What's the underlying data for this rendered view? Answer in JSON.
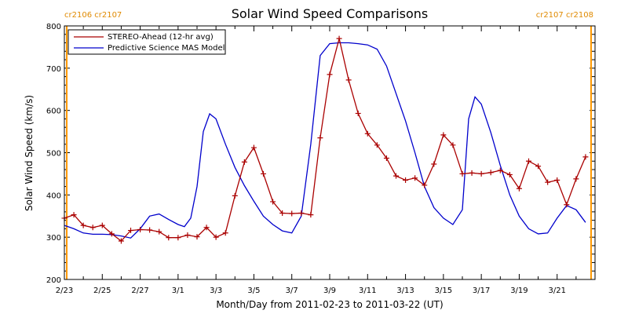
{
  "chart_data": {
    "type": "line",
    "title": "Solar Wind Speed Comparisons",
    "xlabel": "Month/Day from 2011-02-23 to 2011-03-22 (UT)",
    "ylabel": "Solar Wind Speed (km/s)",
    "xlim": [
      "2011-02-23",
      "2011-03-23"
    ],
    "ylim": [
      200,
      800
    ],
    "x_tick_labels": [
      "2/23",
      "2/25",
      "2/27",
      "3/1",
      "3/3",
      "3/5",
      "3/7",
      "3/9",
      "3/11",
      "3/13",
      "3/15",
      "3/17",
      "3/19",
      "3/21"
    ],
    "y_tick_labels": [
      "200",
      "300",
      "400",
      "500",
      "600",
      "700",
      "800"
    ],
    "y_ticks": [
      200,
      300,
      400,
      500,
      600,
      700,
      800
    ],
    "legend_placement": "top-left",
    "carrington_left": "cr2106 cr2107",
    "carrington_right": "cr2107 cr2108",
    "carrington_boundaries": [
      "2011-02-23T03:00",
      "2011-03-22T19:00"
    ],
    "colors": {
      "stereo": "#aa0000",
      "model": "#0000cc",
      "boundary": "#ff9900",
      "carrington_text": "#e08a00"
    },
    "series": [
      {
        "name": "STEREO-Ahead (12-hr avg)",
        "marker": "plus",
        "x": [
          "2011-02-23T00:00",
          "2011-02-23T12:00",
          "2011-02-24T00:00",
          "2011-02-24T12:00",
          "2011-02-25T00:00",
          "2011-02-25T12:00",
          "2011-02-26T00:00",
          "2011-02-26T12:00",
          "2011-02-27T00:00",
          "2011-02-27T12:00",
          "2011-02-28T00:00",
          "2011-02-28T12:00",
          "2011-03-01T00:00",
          "2011-03-01T12:00",
          "2011-03-02T00:00",
          "2011-03-02T12:00",
          "2011-03-03T00:00",
          "2011-03-03T12:00",
          "2011-03-04T00:00",
          "2011-03-04T12:00",
          "2011-03-05T00:00",
          "2011-03-05T12:00",
          "2011-03-06T00:00",
          "2011-03-06T12:00",
          "2011-03-07T00:00",
          "2011-03-07T12:00",
          "2011-03-08T00:00",
          "2011-03-08T12:00",
          "2011-03-09T00:00",
          "2011-03-09T12:00",
          "2011-03-10T00:00",
          "2011-03-10T12:00",
          "2011-03-11T00:00",
          "2011-03-11T12:00",
          "2011-03-12T00:00",
          "2011-03-12T12:00",
          "2011-03-13T00:00",
          "2011-03-13T12:00",
          "2011-03-14T00:00",
          "2011-03-14T12:00",
          "2011-03-15T00:00",
          "2011-03-15T12:00",
          "2011-03-16T00:00",
          "2011-03-16T12:00",
          "2011-03-17T00:00",
          "2011-03-17T12:00",
          "2011-03-18T00:00",
          "2011-03-18T12:00",
          "2011-03-19T00:00",
          "2011-03-19T12:00",
          "2011-03-20T00:00",
          "2011-03-20T12:00",
          "2011-03-21T00:00",
          "2011-03-21T12:00",
          "2011-03-22T00:00",
          "2011-03-22T12:00"
        ],
        "values": [
          345,
          353,
          328,
          323,
          328,
          308,
          291,
          316,
          318,
          317,
          313,
          299,
          299,
          305,
          301,
          323,
          300,
          310,
          398,
          478,
          512,
          450,
          384,
          357,
          356,
          357,
          353,
          535,
          685,
          770,
          672,
          593,
          545,
          518,
          487,
          445,
          435,
          440,
          423,
          473,
          542,
          518,
          450,
          452,
          450,
          453,
          458,
          448,
          415,
          480,
          468,
          430,
          435,
          377,
          438,
          490
        ]
      },
      {
        "name": "Predictive Science MAS Model",
        "marker": "none",
        "x": [
          "2011-02-23T00:00",
          "2011-02-23T12:00",
          "2011-02-24T00:00",
          "2011-02-24T12:00",
          "2011-02-25T00:00",
          "2011-02-25T12:00",
          "2011-02-26T00:00",
          "2011-02-26T12:00",
          "2011-02-27T00:00",
          "2011-02-27T12:00",
          "2011-02-28T00:00",
          "2011-02-28T12:00",
          "2011-03-01T00:00",
          "2011-03-01T08:00",
          "2011-03-01T16:00",
          "2011-03-02T00:00",
          "2011-03-02T08:00",
          "2011-03-02T16:00",
          "2011-03-03T00:00",
          "2011-03-03T12:00",
          "2011-03-04T00:00",
          "2011-03-04T12:00",
          "2011-03-05T00:00",
          "2011-03-05T12:00",
          "2011-03-06T00:00",
          "2011-03-06T12:00",
          "2011-03-07T00:00",
          "2011-03-07T12:00",
          "2011-03-08T00:00",
          "2011-03-08T12:00",
          "2011-03-09T00:00",
          "2011-03-09T12:00",
          "2011-03-10T00:00",
          "2011-03-10T12:00",
          "2011-03-11T00:00",
          "2011-03-11T12:00",
          "2011-03-12T00:00",
          "2011-03-12T12:00",
          "2011-03-13T00:00",
          "2011-03-13T12:00",
          "2011-03-14T00:00",
          "2011-03-14T12:00",
          "2011-03-15T00:00",
          "2011-03-15T12:00",
          "2011-03-16T00:00",
          "2011-03-16T08:00",
          "2011-03-16T16:00",
          "2011-03-17T00:00",
          "2011-03-17T12:00",
          "2011-03-18T00:00",
          "2011-03-18T12:00",
          "2011-03-19T00:00",
          "2011-03-19T12:00",
          "2011-03-20T00:00",
          "2011-03-20T12:00",
          "2011-03-21T00:00",
          "2011-03-21T12:00",
          "2011-03-22T00:00",
          "2011-03-22T12:00"
        ],
        "values": [
          328,
          320,
          310,
          307,
          307,
          306,
          303,
          298,
          320,
          350,
          355,
          342,
          330,
          325,
          345,
          420,
          550,
          592,
          580,
          520,
          465,
          422,
          385,
          350,
          330,
          315,
          310,
          350,
          520,
          730,
          758,
          760,
          760,
          758,
          755,
          745,
          705,
          640,
          575,
          500,
          420,
          370,
          345,
          330,
          365,
          580,
          632,
          615,
          548,
          470,
          400,
          350,
          320,
          308,
          310,
          345,
          375,
          365,
          335
        ]
      }
    ]
  }
}
